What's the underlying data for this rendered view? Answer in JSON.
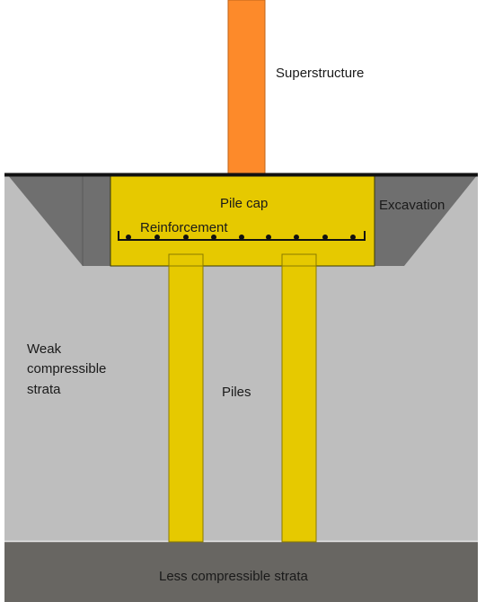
{
  "labels": {
    "superstructure": "Superstructure",
    "pile_cap": "Pile cap",
    "excavation": "Excavation",
    "reinforcement": "Reinforcement",
    "weak_strata_line1": "Weak",
    "weak_strata_line2": "compressible",
    "weak_strata_line3": "strata",
    "piles": "Piles",
    "less_compressible_strata": "Less compressible strata"
  },
  "colors": {
    "superstructure": "#fd8a2a",
    "pile_cap": "#e6c900",
    "piles": "#e6c900",
    "excavation": "#6f6f6f",
    "weak_strata": "#bebebe",
    "less_compressible_strata": "#686662",
    "ground_line": "#111111"
  }
}
